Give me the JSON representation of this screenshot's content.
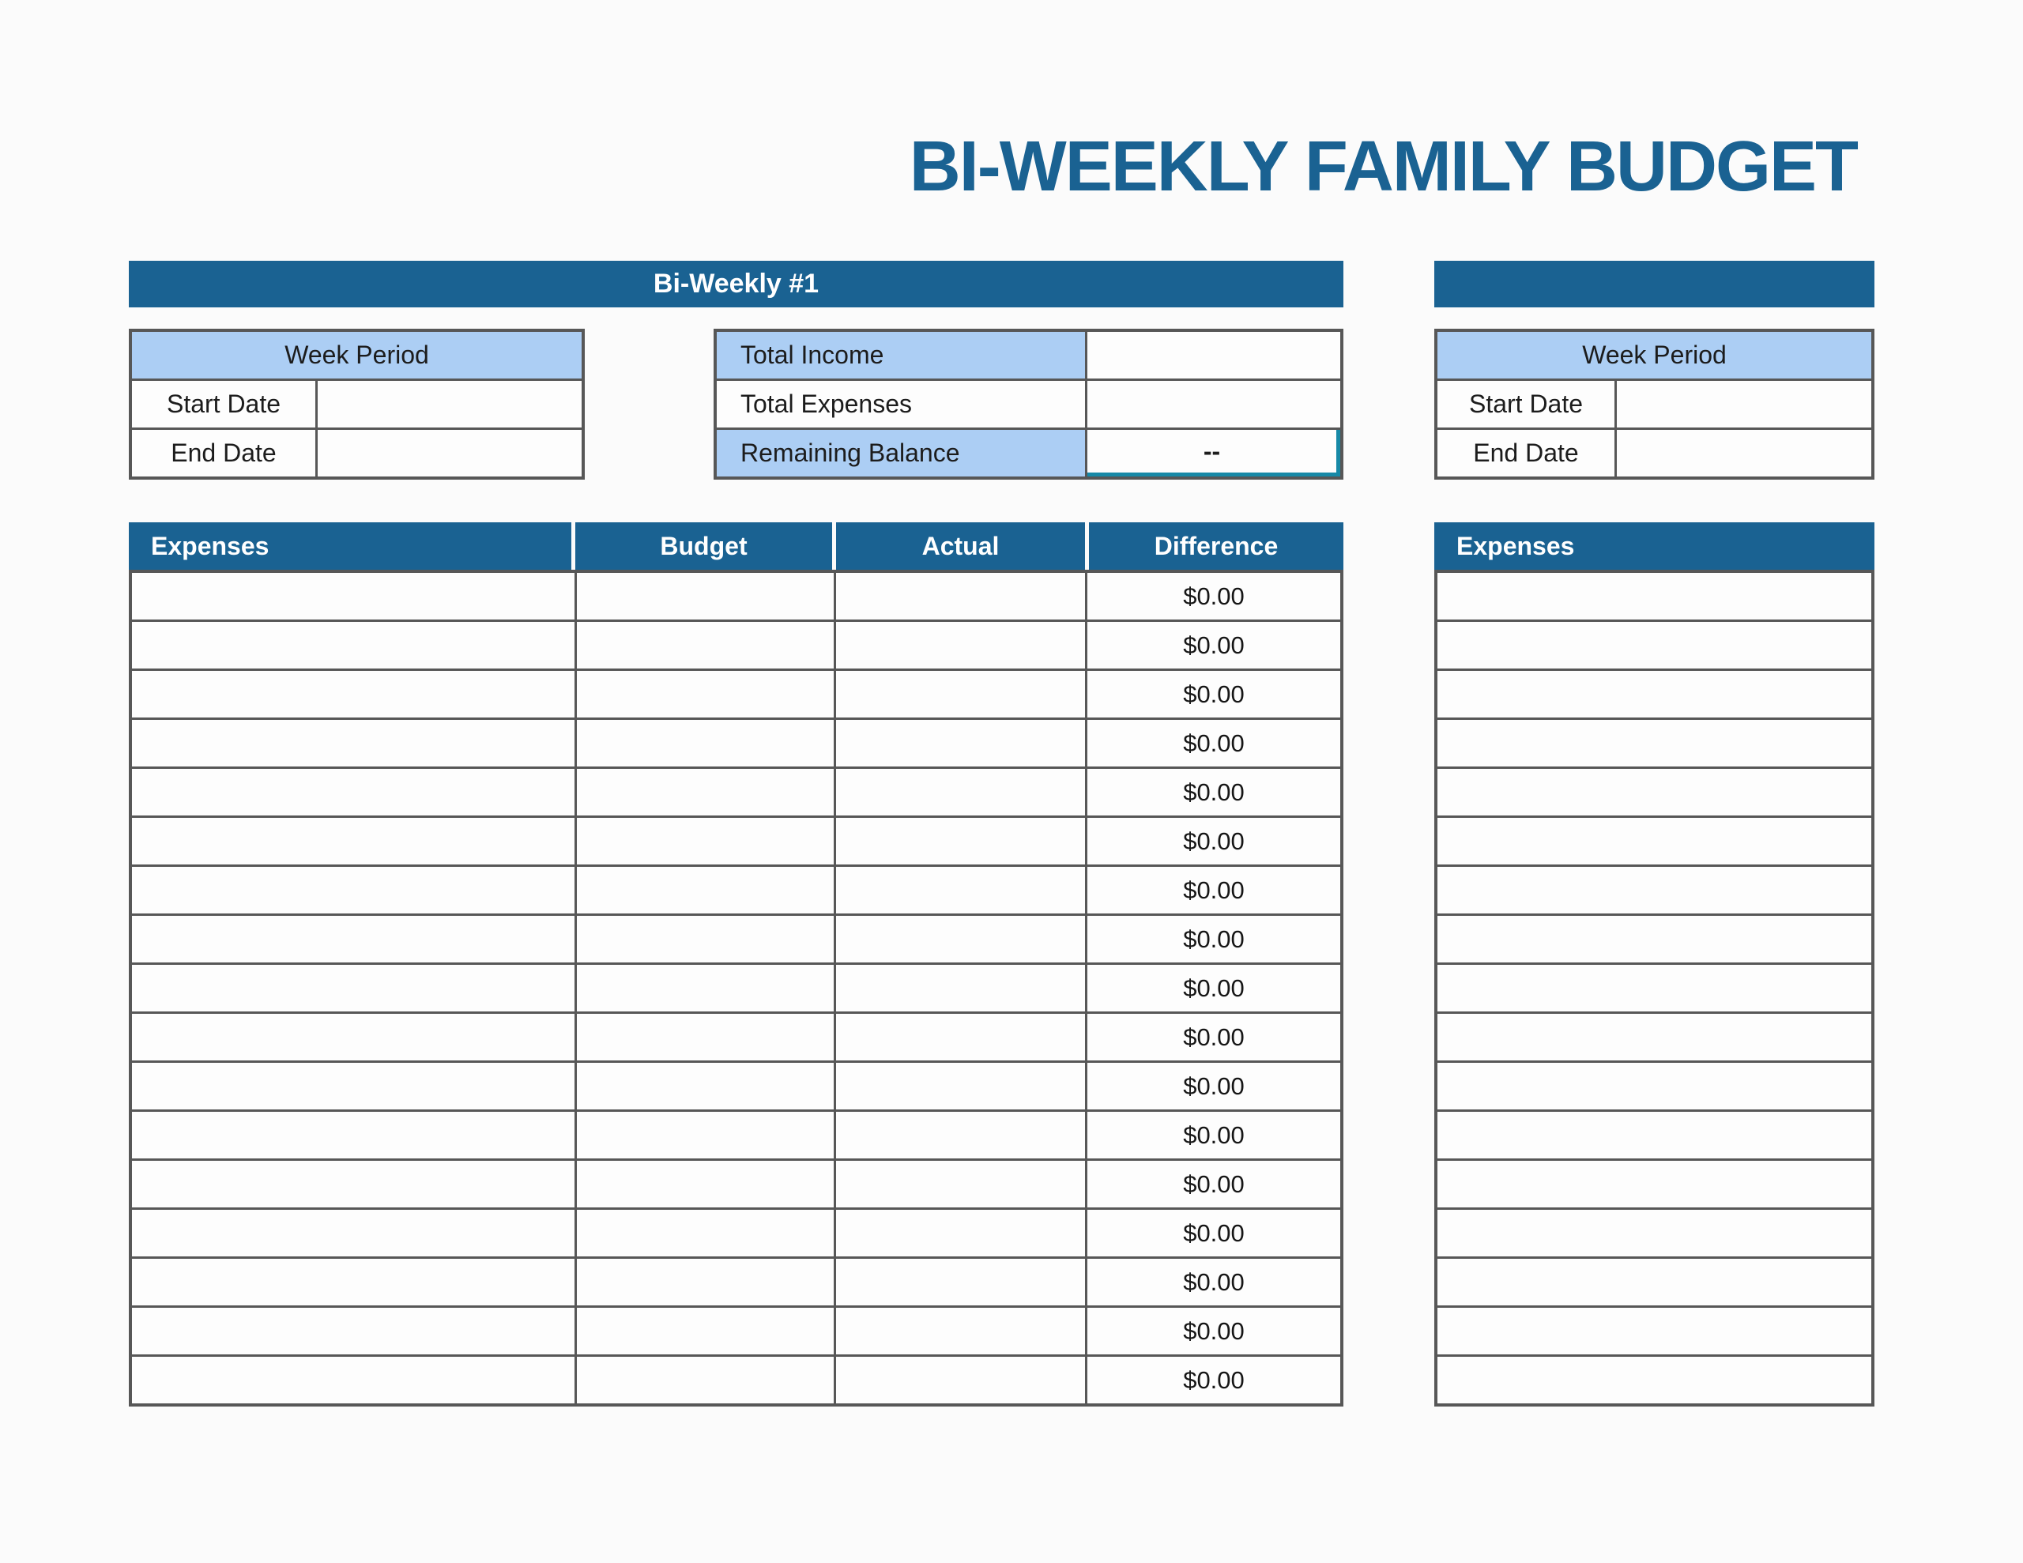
{
  "title": "BI-WEEKLY FAMILY BUDGET",
  "colors": {
    "header_blue": "#1a6292",
    "light_blue": "#accef4",
    "grid_gray": "#575757",
    "selection_teal": "#1789a7",
    "page_background": "#fbfbfb"
  },
  "section1": {
    "header_label": "Bi-Weekly #1",
    "week_period": {
      "title": "Week Period",
      "rows": [
        {
          "label": "Start Date",
          "value": ""
        },
        {
          "label": "End Date",
          "value": ""
        }
      ]
    },
    "summary": {
      "total_income_label": "Total Income",
      "total_income_value": "",
      "total_expenses_label": "Total Expenses",
      "total_expenses_value": "",
      "remaining_balance_label": "Remaining Balance",
      "remaining_balance_value": "--"
    },
    "table": {
      "columns": [
        "Expenses",
        "Budget",
        "Actual",
        "Difference"
      ],
      "rows": [
        {
          "expense": "",
          "budget": "",
          "actual": "",
          "difference": "$0.00"
        },
        {
          "expense": "",
          "budget": "",
          "actual": "",
          "difference": "$0.00"
        },
        {
          "expense": "",
          "budget": "",
          "actual": "",
          "difference": "$0.00"
        },
        {
          "expense": "",
          "budget": "",
          "actual": "",
          "difference": "$0.00"
        },
        {
          "expense": "",
          "budget": "",
          "actual": "",
          "difference": "$0.00"
        },
        {
          "expense": "",
          "budget": "",
          "actual": "",
          "difference": "$0.00"
        },
        {
          "expense": "",
          "budget": "",
          "actual": "",
          "difference": "$0.00"
        },
        {
          "expense": "",
          "budget": "",
          "actual": "",
          "difference": "$0.00"
        },
        {
          "expense": "",
          "budget": "",
          "actual": "",
          "difference": "$0.00"
        },
        {
          "expense": "",
          "budget": "",
          "actual": "",
          "difference": "$0.00"
        },
        {
          "expense": "",
          "budget": "",
          "actual": "",
          "difference": "$0.00"
        },
        {
          "expense": "",
          "budget": "",
          "actual": "",
          "difference": "$0.00"
        },
        {
          "expense": "",
          "budget": "",
          "actual": "",
          "difference": "$0.00"
        },
        {
          "expense": "",
          "budget": "",
          "actual": "",
          "difference": "$0.00"
        },
        {
          "expense": "",
          "budget": "",
          "actual": "",
          "difference": "$0.00"
        },
        {
          "expense": "",
          "budget": "",
          "actual": "",
          "difference": "$0.00"
        },
        {
          "expense": "",
          "budget": "",
          "actual": "",
          "difference": "$0.00"
        }
      ]
    }
  },
  "section2": {
    "header_label": "",
    "week_period": {
      "title": "Week Period",
      "rows": [
        {
          "label": "Start Date",
          "value": ""
        },
        {
          "label": "End Date",
          "value": ""
        }
      ]
    },
    "table": {
      "columns": [
        "Expenses"
      ],
      "rows": [
        {
          "expense": ""
        },
        {
          "expense": ""
        },
        {
          "expense": ""
        },
        {
          "expense": ""
        },
        {
          "expense": ""
        },
        {
          "expense": ""
        },
        {
          "expense": ""
        },
        {
          "expense": ""
        },
        {
          "expense": ""
        },
        {
          "expense": ""
        },
        {
          "expense": ""
        },
        {
          "expense": ""
        },
        {
          "expense": ""
        },
        {
          "expense": ""
        },
        {
          "expense": ""
        },
        {
          "expense": ""
        },
        {
          "expense": ""
        }
      ]
    }
  }
}
